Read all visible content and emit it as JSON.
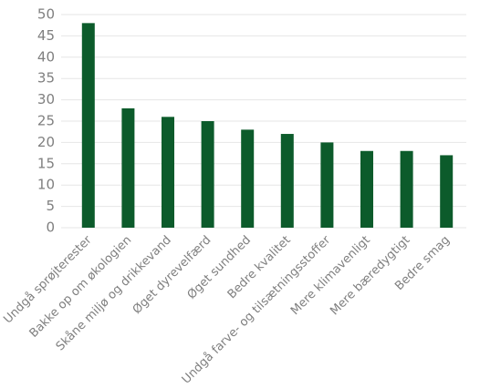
{
  "chart_data": {
    "type": "bar",
    "categories": [
      "Undgå sprøjterester",
      "Bakke op om økologien",
      "Skåne miljø og drikkevand",
      "Øget dyrevelfærd",
      "Øget sundhed",
      "Bedre kvalitet",
      "Undgå farve- og tilsætningsstoffer",
      "Mere klimavenligt",
      "Mere bæredygtigt",
      "Bedre smag"
    ],
    "values": [
      48,
      28,
      26,
      25,
      23,
      22,
      20,
      18,
      18,
      17
    ],
    "color": "#0c5b2b",
    "ylim": [
      0,
      50
    ],
    "yticks": [
      0,
      5,
      10,
      15,
      20,
      25,
      30,
      35,
      40,
      45,
      50
    ],
    "grid": true
  }
}
